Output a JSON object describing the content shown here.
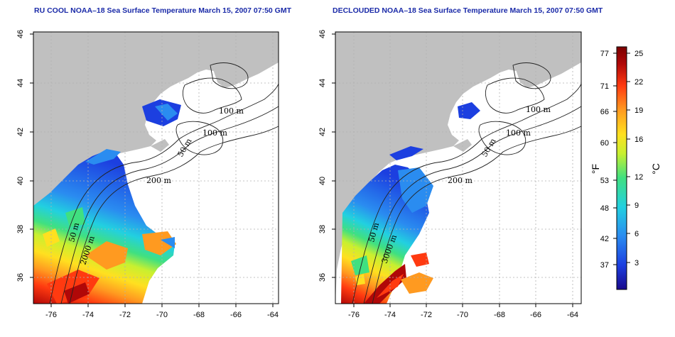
{
  "maps": [
    {
      "title": "RU COOL NOAA–18 Sea Surface Temperature March 15, 2007 07:50 GMT",
      "x_ticks": [
        "-76",
        "-74",
        "-72",
        "-70",
        "-68",
        "-66",
        "-64"
      ],
      "y_ticks": [
        "36",
        "38",
        "40",
        "42",
        "44",
        "46"
      ],
      "contour_labels": [
        "100 m",
        "100 m",
        "50 m",
        "200 m",
        "50 m",
        "2000 m"
      ]
    },
    {
      "title": "DECLOUDED NOAA–18 Sea Surface Temperature March 15, 2007 07:50 GMT",
      "x_ticks": [
        "-76",
        "-74",
        "-72",
        "-70",
        "-68",
        "-66",
        "-64"
      ],
      "y_ticks": [
        "36",
        "38",
        "40",
        "42",
        "44",
        "46"
      ],
      "contour_labels": [
        "100 m",
        "100 m",
        "50 m",
        "200 m",
        "50 m",
        "3000 m"
      ]
    }
  ],
  "colorbar": {
    "fahrenheit_ticks": [
      "77",
      "71",
      "66",
      "60",
      "53",
      "48",
      "42",
      "37"
    ],
    "celsius_ticks": [
      "25",
      "22",
      "19",
      "16",
      "12",
      "9",
      "6",
      "3"
    ],
    "fahrenheit_label": "°F",
    "celsius_label": "°C",
    "colors": [
      "#1a0a8c",
      "#1c3fe0",
      "#2a8cf0",
      "#22d0e0",
      "#40e080",
      "#c8f030",
      "#ffe020",
      "#ff9a20",
      "#ff3a10",
      "#b00808",
      "#7a0000"
    ]
  },
  "colors": {
    "land": "#c0c0c0",
    "title": "#1a2aa8",
    "grid": "#b0b0b0"
  }
}
